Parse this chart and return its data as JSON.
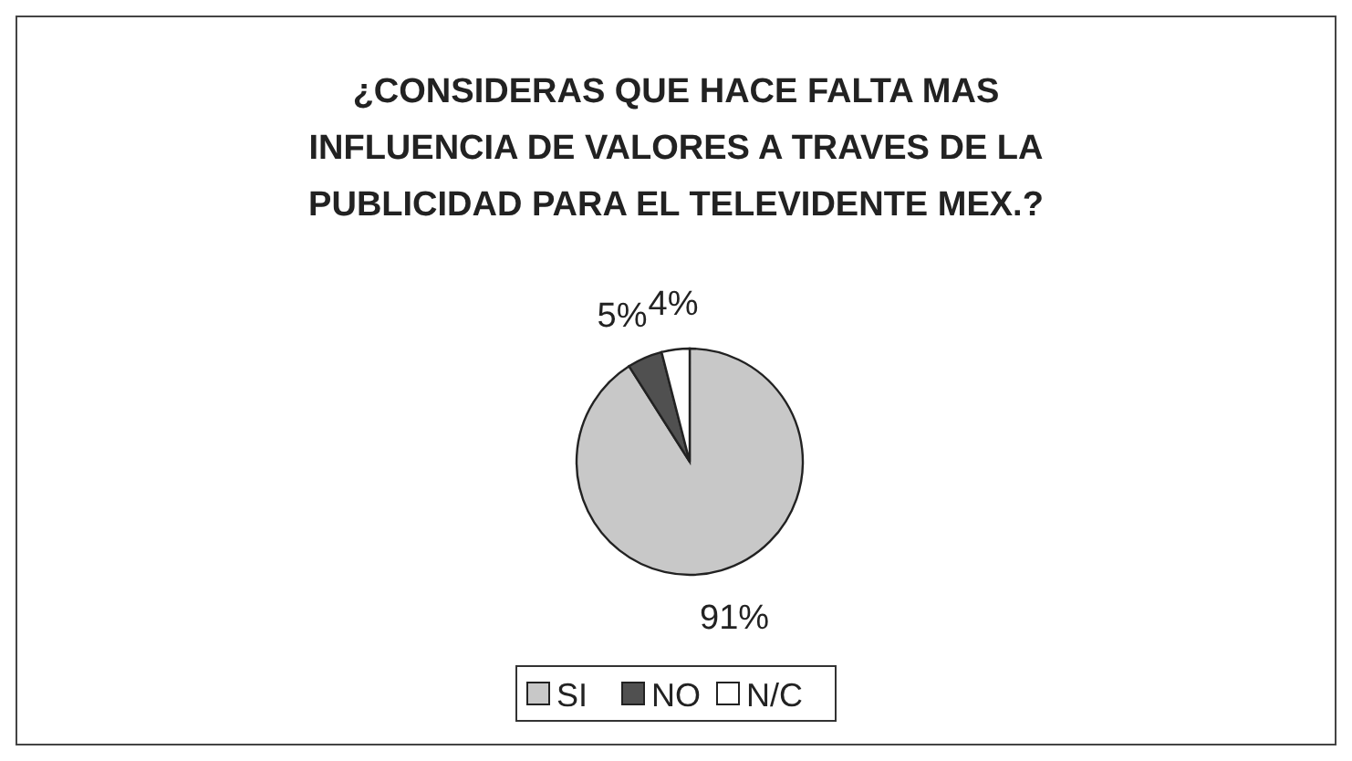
{
  "chart_data": {
    "type": "pie",
    "title": "¿CONSIDERAS QUE HACE FALTA MAS\nINFLUENCIA DE VALORES A TRAVES DE LA\nPUBLICIDAD PARA EL TELEVIDENTE MEX.?",
    "categories": [
      "SI",
      "NO",
      "N/C"
    ],
    "values": [
      91,
      5,
      4
    ],
    "colors": [
      "#c8c8c8",
      "#505050",
      "#ffffff"
    ],
    "value_labels": [
      "91%",
      "5%",
      "4%"
    ],
    "legend": "bottom"
  }
}
